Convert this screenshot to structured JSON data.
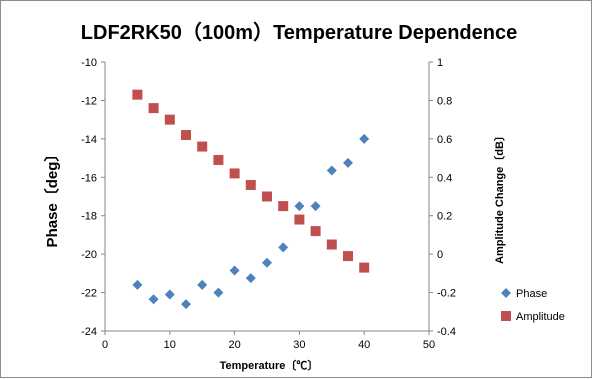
{
  "chart_data": {
    "type": "scatter",
    "title": "LDF2RK50（100m）Temperature Dependence",
    "xlabel": "Temperature〔℃〕",
    "ylabel": "Phase〔deg〕",
    "y2label": "Amplitude Change〔dB〕",
    "xlim": [
      0,
      50
    ],
    "ylim": [
      -24,
      -10
    ],
    "y2lim": [
      -0.4,
      1.0
    ],
    "x_ticks": [
      "0",
      "10",
      "20",
      "30",
      "40",
      "50"
    ],
    "y_ticks": [
      "-10",
      "-12",
      "-14",
      "-16",
      "-18",
      "-20",
      "-22",
      "-24"
    ],
    "y2_ticks": [
      "1",
      "0.8",
      "0.6",
      "0.4",
      "0.2",
      "0",
      "-0.2",
      "-0.4"
    ],
    "grid": false,
    "legend_position": "right",
    "series": [
      {
        "name": "Phase",
        "axis": "left",
        "marker": "diamond",
        "color": "#4F81BD",
        "x": [
          5,
          7.5,
          10,
          12.5,
          15,
          17.5,
          20,
          22.5,
          25,
          27.5,
          30,
          32.5,
          35,
          37.5,
          40
        ],
        "values": [
          -21.6,
          -22.35,
          -22.1,
          -22.6,
          -21.6,
          -22.0,
          -20.85,
          -21.25,
          -20.45,
          -19.65,
          -17.5,
          -17.5,
          -15.65,
          -15.25,
          -14.0
        ]
      },
      {
        "name": "Amplitude",
        "axis": "right",
        "marker": "square",
        "color": "#C0504D",
        "x": [
          5,
          7.5,
          10,
          12.5,
          15,
          17.5,
          20,
          22.5,
          25,
          27.5,
          30,
          32.5,
          35,
          37.5,
          40
        ],
        "values": [
          0.83,
          0.76,
          0.7,
          0.62,
          0.56,
          0.49,
          0.42,
          0.36,
          0.3,
          0.25,
          0.18,
          0.12,
          0.05,
          -0.01,
          -0.07
        ]
      }
    ]
  }
}
